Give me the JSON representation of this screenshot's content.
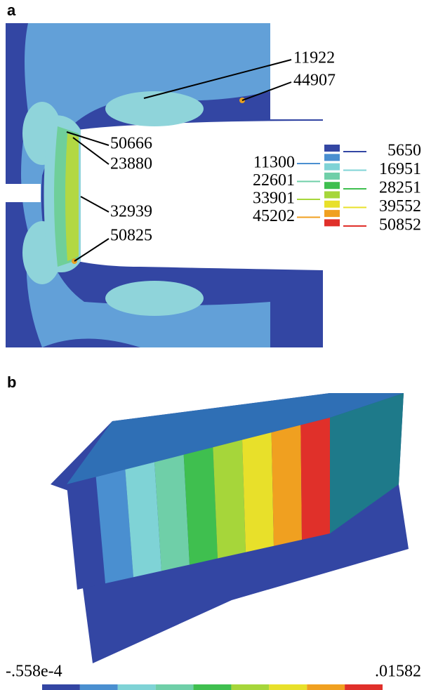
{
  "panel_a": {
    "label": "a",
    "annotations": [
      11922,
      44907,
      50666,
      23880,
      32939,
      50825
    ],
    "legend": {
      "left": [
        11300,
        22601,
        33901,
        45202
      ],
      "right": [
        5650,
        16951,
        28251,
        39552,
        50852
      ]
    }
  },
  "panel_b": {
    "label": "b",
    "colorbar": {
      "min_label": "-.558e-4",
      "max_label": ".01582"
    }
  }
}
